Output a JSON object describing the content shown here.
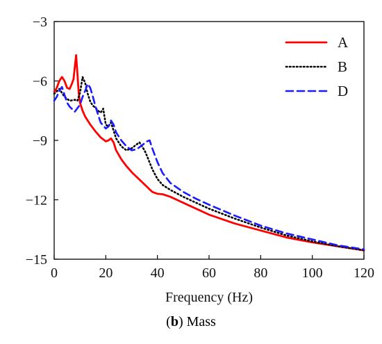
{
  "caption": {
    "bold": "b",
    "prefix": "(",
    "suffix": ") Mass"
  },
  "chart_data": {
    "type": "line",
    "title": "",
    "xlabel": "Frequency (Hz)",
    "ylabel": "",
    "xlim": [
      0,
      120
    ],
    "ylim": [
      -15,
      -3
    ],
    "xticks": [
      0,
      20,
      40,
      60,
      80,
      100,
      120
    ],
    "xtick_labels": [
      "0",
      "20",
      "40",
      "60",
      "80",
      "100",
      "120"
    ],
    "yticks": [
      -15,
      -12,
      -9,
      -6,
      -3
    ],
    "ytick_labels": [
      "−15",
      "−12",
      "−9",
      "−6",
      "−3"
    ],
    "grid": false,
    "legend_position": "top-right",
    "series": [
      {
        "name": "A",
        "color": "#ff0000",
        "style": "solid",
        "x": [
          0,
          1,
          2,
          3,
          4,
          5,
          6,
          7,
          7.5,
          8,
          8.5,
          9,
          9.5,
          10,
          11,
          12,
          14,
          16,
          18,
          20,
          21,
          22,
          23,
          24,
          26,
          28,
          30,
          32,
          34,
          36,
          38,
          40,
          42,
          45,
          50,
          55,
          60,
          70,
          80,
          90,
          100,
          110,
          120
        ],
        "y": [
          -6.55,
          -6.35,
          -6.0,
          -5.8,
          -6.0,
          -6.35,
          -6.4,
          -6.1,
          -5.9,
          -5.3,
          -4.7,
          -5.6,
          -6.6,
          -7.1,
          -7.5,
          -7.8,
          -8.2,
          -8.55,
          -8.85,
          -9.05,
          -9.0,
          -8.9,
          -9.1,
          -9.5,
          -9.95,
          -10.3,
          -10.6,
          -10.85,
          -11.1,
          -11.35,
          -11.6,
          -11.7,
          -11.72,
          -11.85,
          -12.15,
          -12.45,
          -12.75,
          -13.2,
          -13.55,
          -13.9,
          -14.15,
          -14.35,
          -14.55
        ]
      },
      {
        "name": "B",
        "color": "#000000",
        "style": "dotted",
        "x": [
          0,
          2,
          4,
          6,
          8,
          9,
          10,
          11,
          12,
          13,
          14,
          15,
          16,
          17,
          18,
          19,
          20,
          21,
          22,
          23,
          24,
          26,
          28,
          30,
          32,
          33,
          34,
          35,
          36,
          38,
          40,
          42,
          45,
          50,
          55,
          60,
          70,
          80,
          90,
          100,
          110,
          120
        ],
        "y": [
          -6.65,
          -6.4,
          -6.8,
          -7.0,
          -6.95,
          -7.0,
          -6.6,
          -5.8,
          -6.1,
          -6.65,
          -7.05,
          -7.25,
          -7.35,
          -7.5,
          -7.6,
          -7.4,
          -8.2,
          -8.3,
          -8.1,
          -8.5,
          -8.9,
          -9.3,
          -9.5,
          -9.4,
          -9.2,
          -9.1,
          -9.3,
          -9.5,
          -9.8,
          -10.45,
          -10.95,
          -11.25,
          -11.5,
          -11.85,
          -12.15,
          -12.45,
          -12.95,
          -13.4,
          -13.8,
          -14.1,
          -14.35,
          -14.55
        ]
      },
      {
        "name": "D",
        "color": "#1a1aff",
        "style": "dashed",
        "x": [
          0,
          1,
          2,
          3,
          4,
          5,
          6,
          8,
          10,
          11,
          12,
          13,
          14,
          15,
          16,
          18,
          20,
          21,
          22,
          23,
          24,
          26,
          28,
          30,
          32,
          34,
          36,
          37,
          38,
          40,
          42,
          45,
          50,
          55,
          60,
          70,
          80,
          90,
          100,
          110,
          120
        ],
        "y": [
          -7.0,
          -6.8,
          -6.5,
          -6.3,
          -6.7,
          -7.1,
          -7.3,
          -7.55,
          -7.2,
          -6.8,
          -6.5,
          -6.15,
          -6.35,
          -6.8,
          -7.3,
          -8.1,
          -8.4,
          -8.3,
          -8.0,
          -8.2,
          -8.6,
          -9.0,
          -9.3,
          -9.5,
          -9.45,
          -9.25,
          -9.05,
          -9.0,
          -9.4,
          -10.1,
          -10.65,
          -11.15,
          -11.6,
          -11.95,
          -12.25,
          -12.8,
          -13.3,
          -13.7,
          -14.0,
          -14.3,
          -14.5
        ]
      }
    ]
  }
}
